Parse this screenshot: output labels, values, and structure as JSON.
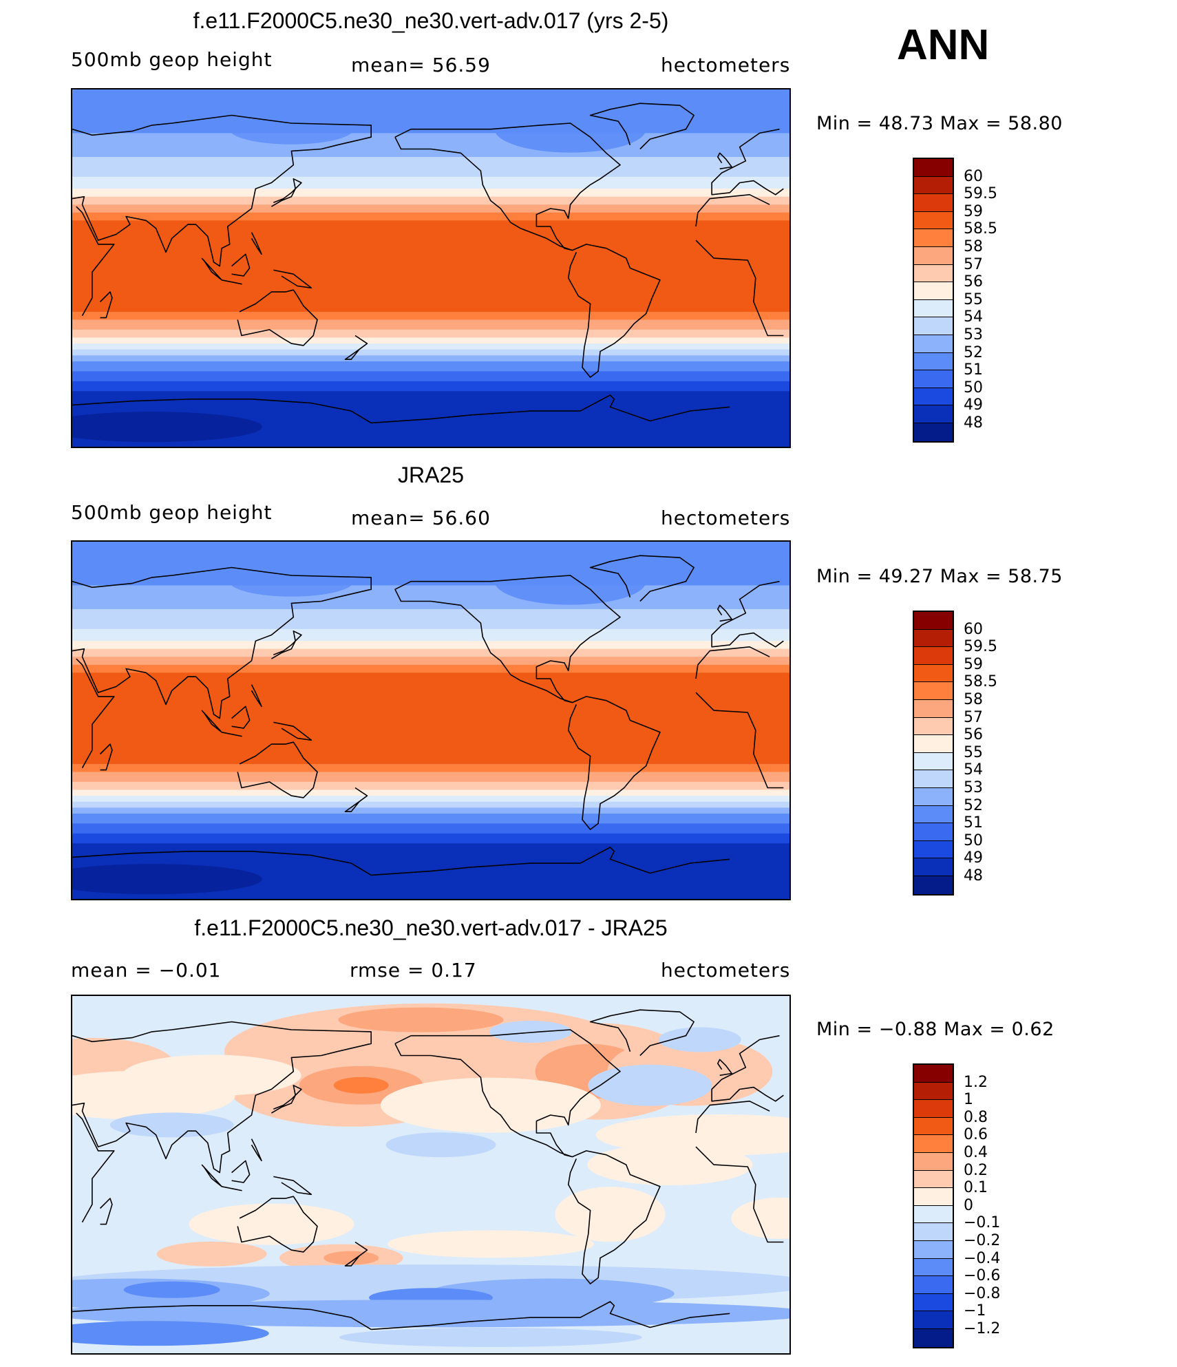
{
  "panels": [
    {
      "title": "f.e11.F2000C5.ne30_ne30.vert-adv.017 (yrs 2-5)",
      "left_label": "500mb  geop  height",
      "center_label": "mean=   56.59",
      "right_label": "hectometers",
      "minmax": "Min  =    48.73  Max  =    58.80",
      "colorbar": {
        "labels": [
          "60",
          "59.5",
          "59",
          "58.5",
          "58",
          "57",
          "56",
          "55",
          "54",
          "53",
          "52",
          "51",
          "50",
          "49",
          "48"
        ],
        "colors": [
          "#870000",
          "#b41e05",
          "#dc3a0a",
          "#f05a14",
          "#ff7f3c",
          "#fca77e",
          "#ffcbb0",
          "#fff0e1",
          "#ddecfa",
          "#bfd7fb",
          "#8cb2fb",
          "#5c8cf7",
          "#3a6aef",
          "#1a4ae0",
          "#0a2fb8",
          "#041b8a"
        ]
      },
      "field": "abs_model"
    },
    {
      "title": "JRA25",
      "left_label": "500mb  geop  height",
      "center_label": "mean=   56.60",
      "right_label": "hectometers",
      "minmax": "Min  =    49.27  Max  =    58.75",
      "colorbar": {
        "labels": [
          "60",
          "59.5",
          "59",
          "58.5",
          "58",
          "57",
          "56",
          "55",
          "54",
          "53",
          "52",
          "51",
          "50",
          "49",
          "48"
        ],
        "colors": [
          "#870000",
          "#b41e05",
          "#dc3a0a",
          "#f05a14",
          "#ff7f3c",
          "#fca77e",
          "#ffcbb0",
          "#fff0e1",
          "#ddecfa",
          "#bfd7fb",
          "#8cb2fb",
          "#5c8cf7",
          "#3a6aef",
          "#1a4ae0",
          "#0a2fb8",
          "#041b8a"
        ]
      },
      "field": "abs_obs"
    },
    {
      "title": "f.e11.F2000C5.ne30_ne30.vert-adv.017 - JRA25",
      "left_label": "mean  =    −0.01",
      "center_label": "rmse  =     0.17",
      "right_label": "hectometers",
      "minmax": "Min  =   −0.88  Max  =     0.62",
      "colorbar": {
        "labels": [
          "1.2",
          "1",
          "0.8",
          "0.6",
          "0.4",
          "0.2",
          "0.1",
          "0",
          "−0.1",
          "−0.2",
          "−0.4",
          "−0.6",
          "−0.8",
          "−1",
          "−1.2"
        ],
        "colors": [
          "#870000",
          "#b41e05",
          "#dc3a0a",
          "#f05a14",
          "#ff7f3c",
          "#fca77e",
          "#ffcbb0",
          "#fff0e1",
          "#ddecfa",
          "#bfd7fb",
          "#8cb2fb",
          "#5c8cf7",
          "#3a6aef",
          "#1a4ae0",
          "#0a2fb8",
          "#041b8a"
        ]
      },
      "field": "diff"
    }
  ],
  "season": "ANN"
}
